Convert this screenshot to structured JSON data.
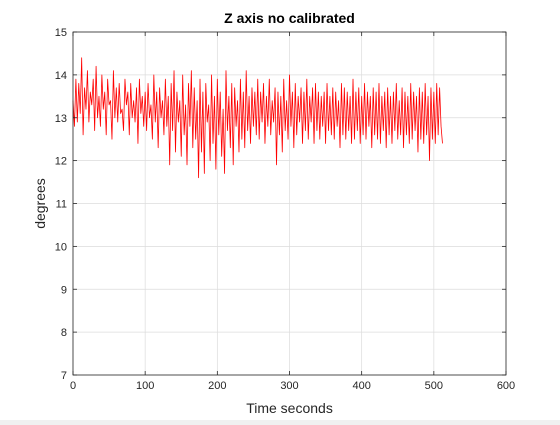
{
  "chart_data": {
    "type": "line",
    "title": "Z axis no calibrated",
    "xlabel": "Time seconds",
    "ylabel": "degrees",
    "xlim": [
      0,
      600
    ],
    "ylim": [
      7,
      15
    ],
    "xticks": [
      0,
      100,
      200,
      300,
      400,
      500,
      600
    ],
    "yticks": [
      7,
      8,
      9,
      10,
      11,
      12,
      13,
      14,
      15
    ],
    "xtick_labels": [
      "0",
      "100",
      "200",
      "300",
      "400",
      "500",
      "600"
    ],
    "ytick_labels": [
      "7",
      "8",
      "9",
      "10",
      "11",
      "12",
      "13",
      "14",
      "15"
    ],
    "grid": true,
    "box": true,
    "series": [
      {
        "color": "#ff0000",
        "x_start": 0,
        "x_step": 2,
        "values": [
          13.4,
          12.8,
          13.9,
          12.9,
          13.8,
          13.1,
          14.4,
          12.6,
          13.7,
          13.2,
          14.1,
          12.9,
          13.6,
          13.3,
          13.9,
          12.7,
          14.2,
          13.0,
          13.5,
          12.8,
          14.0,
          13.2,
          13.6,
          12.6,
          13.9,
          13.3,
          13.4,
          12.5,
          14.1,
          13.0,
          13.7,
          12.9,
          13.8,
          13.1,
          13.2,
          12.7,
          13.9,
          13.3,
          13.6,
          12.6,
          13.8,
          13.0,
          13.4,
          12.9,
          13.7,
          12.4,
          13.9,
          13.1,
          13.5,
          12.8,
          13.6,
          12.7,
          13.8,
          13.0,
          13.3,
          12.5,
          14.0,
          12.9,
          13.6,
          12.3,
          13.7,
          13.0,
          13.4,
          12.6,
          13.9,
          12.8,
          13.5,
          11.9,
          13.8,
          12.7,
          14.1,
          12.2,
          13.6,
          12.9,
          13.4,
          12.1,
          14.0,
          12.6,
          13.3,
          11.9,
          13.8,
          12.8,
          14.1,
          12.3,
          13.7,
          12.5,
          13.4,
          11.6,
          13.9,
          12.2,
          13.6,
          11.7,
          13.8,
          12.9,
          13.3,
          12.0,
          14.0,
          12.4,
          13.5,
          11.8,
          13.9,
          12.6,
          13.6,
          12.1,
          13.2,
          11.7,
          14.1,
          12.7,
          13.5,
          12.3,
          13.8,
          11.9,
          13.7,
          12.8,
          13.4,
          12.2,
          13.9,
          12.5,
          13.6,
          12.3,
          14.1,
          12.7,
          13.5,
          12.4,
          13.7,
          12.8,
          13.6,
          12.6,
          13.9,
          12.5,
          13.6,
          12.9,
          13.8,
          12.4,
          13.5,
          12.8,
          13.9,
          12.6,
          13.4,
          12.9,
          13.7,
          11.9,
          13.6,
          12.6,
          13.5,
          12.2,
          13.9,
          12.7,
          13.4,
          12.5,
          14.0,
          12.8,
          13.6,
          12.3,
          13.8,
          12.6,
          13.5,
          12.9,
          13.7,
          12.4,
          13.6,
          12.7,
          13.9,
          12.5,
          13.5,
          12.9,
          13.7,
          12.4,
          13.8,
          12.7,
          13.6,
          12.5,
          13.5,
          12.8,
          13.6,
          12.4,
          13.8,
          12.7,
          13.5,
          12.6,
          13.7,
          12.5,
          13.6,
          12.8,
          13.4,
          12.3,
          13.8,
          12.6,
          13.7,
          12.5,
          13.6,
          12.7,
          13.5,
          12.4,
          13.9,
          12.5,
          13.6,
          12.7,
          13.7,
          12.4,
          13.5,
          12.6,
          13.8,
          12.5,
          13.6,
          12.8,
          13.5,
          12.3,
          13.7,
          12.6,
          13.6,
          12.5,
          13.8,
          12.4,
          13.5,
          12.7,
          13.6,
          12.3,
          13.7,
          12.6,
          13.5,
          12.4,
          13.6,
          12.7,
          13.8,
          12.5,
          13.4,
          12.6,
          13.7,
          12.3,
          13.6,
          12.6,
          13.5,
          12.4,
          13.8,
          12.5,
          13.6,
          12.7,
          13.5,
          12.2,
          13.7,
          12.5,
          13.6,
          12.4,
          13.8,
          12.6,
          13.5,
          12.0,
          13.7,
          12.5,
          13.6,
          12.4,
          13.8,
          12.6,
          13.7,
          12.8,
          12.4
        ]
      }
    ]
  }
}
